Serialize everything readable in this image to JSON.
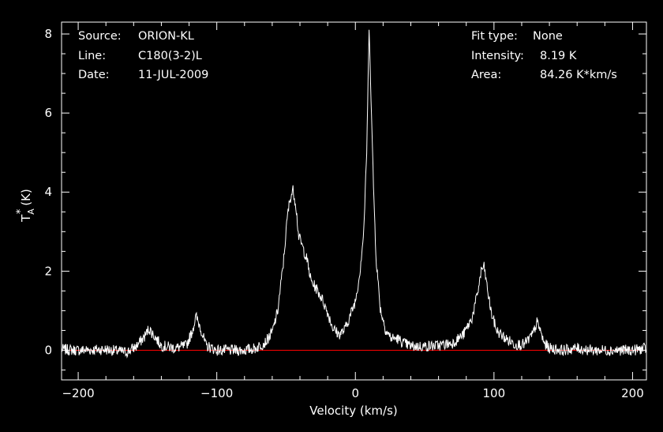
{
  "header": {
    "source_label": "Source:",
    "source_value": "ORION-KL",
    "line_label": "Line:",
    "line_value": "C180(3-2)L",
    "date_label": "Date:",
    "date_value": "11-JUL-2009",
    "fit_label": "Fit type:",
    "fit_value": "None",
    "intensity_label": "Intensity:",
    "intensity_value": "8.19 K",
    "area_label": "Area:",
    "area_value": "84.26 K*km/s"
  },
  "chart_data": {
    "type": "line",
    "xlabel": "Velocity (km/s)",
    "ylabel": "T*A (K)",
    "ylabel_main": "T",
    "ylabel_sub": "A",
    "ylabel_sup": "*",
    "ylabel_unit": "(K)",
    "xlim": [
      -212,
      210
    ],
    "ylim": [
      -0.75,
      8.3
    ],
    "xticks": [
      -200,
      -100,
      0,
      100,
      200
    ],
    "xtick_labels": [
      "−200",
      "−100",
      "0",
      "100",
      "200"
    ],
    "yticks": [
      0,
      2,
      4,
      6,
      8
    ],
    "ytick_labels": [
      "0",
      "2",
      "4",
      "6",
      "8"
    ],
    "baseline": 0,
    "baseline_color": "#ff0000",
    "line_color": "#ffffff",
    "grid": false,
    "series": [
      {
        "x": [
          -212,
          -200,
          -180,
          -165,
          -158,
          -152,
          -149,
          -146,
          -140,
          -130,
          -122,
          -118,
          -115,
          -112,
          -108,
          -100,
          -90,
          -80,
          -72,
          -65,
          -60,
          -56,
          -52,
          -49,
          -47,
          -45,
          -43,
          -41,
          -38,
          -35,
          -32,
          -28,
          -24,
          -20,
          -16,
          -12,
          -8,
          -4,
          0,
          3,
          6,
          8,
          9,
          10,
          11,
          13,
          15,
          18,
          22,
          26,
          30,
          35,
          40,
          50,
          60,
          70,
          78,
          84,
          88,
          91,
          93,
          95,
          98,
          102,
          108,
          115,
          122,
          128,
          131,
          133,
          136,
          140,
          150,
          160,
          170,
          185,
          200,
          210
        ],
        "y": [
          0.02,
          0.0,
          0.02,
          -0.05,
          0.1,
          0.35,
          0.55,
          0.4,
          0.12,
          0.05,
          0.12,
          0.45,
          0.85,
          0.6,
          0.12,
          0.0,
          0.0,
          0.0,
          0.05,
          0.2,
          0.45,
          1.0,
          2.2,
          3.4,
          3.85,
          4.05,
          3.7,
          2.9,
          2.6,
          2.3,
          1.75,
          1.55,
          1.3,
          0.95,
          0.55,
          0.4,
          0.5,
          0.85,
          1.25,
          1.9,
          3.0,
          4.8,
          6.5,
          8.19,
          6.8,
          4.2,
          2.3,
          1.05,
          0.5,
          0.3,
          0.3,
          0.18,
          0.1,
          0.1,
          0.12,
          0.18,
          0.4,
          0.8,
          1.4,
          2.05,
          2.1,
          1.6,
          0.95,
          0.5,
          0.3,
          0.15,
          0.15,
          0.4,
          0.7,
          0.55,
          0.18,
          0.05,
          0.0,
          0.05,
          0.0,
          0.0,
          0.0,
          0.05
        ]
      }
    ]
  }
}
